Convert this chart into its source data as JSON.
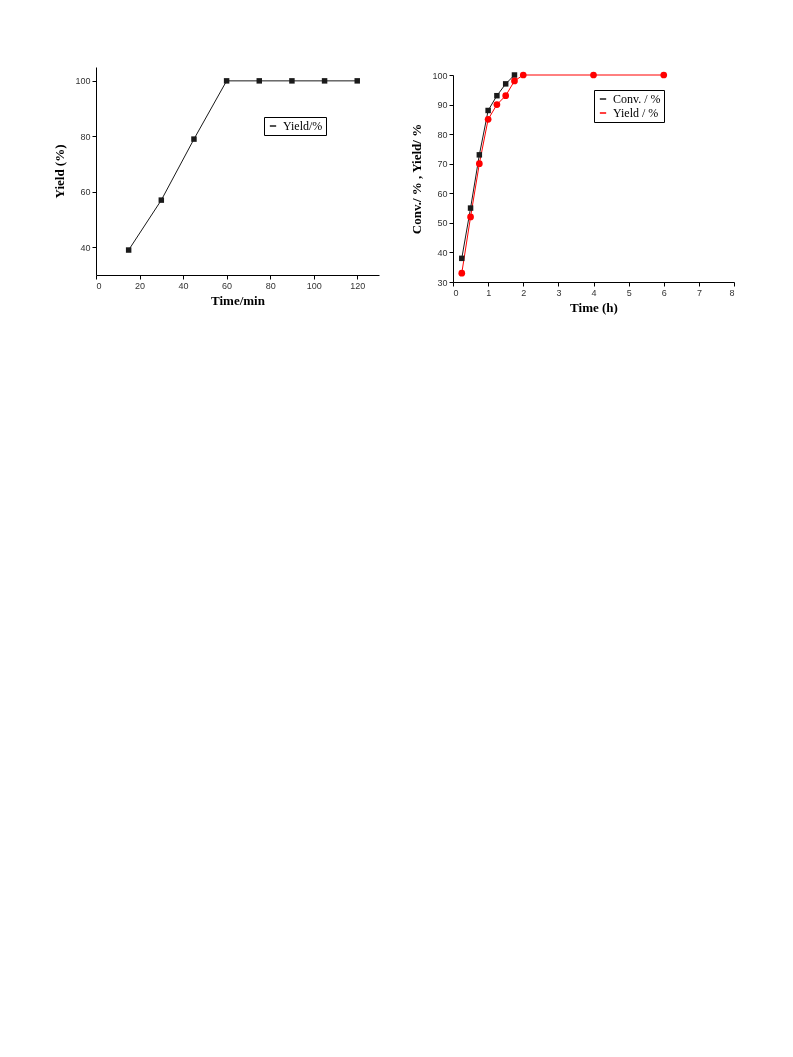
{
  "chart_data": [
    {
      "type": "line",
      "xlabel": "Time/min",
      "ylabel": "Yield (%)",
      "x": [
        15,
        30,
        45,
        60,
        75,
        90,
        105,
        120
      ],
      "xlim": [
        0,
        130
      ],
      "xticks": [
        0,
        20,
        40,
        60,
        80,
        100,
        120
      ],
      "ylim": [
        30,
        105
      ],
      "yticks": [
        40,
        60,
        80,
        100
      ],
      "grid": false,
      "legend": "top right",
      "series": [
        {
          "name": "Yield/%",
          "color": "#1a1a1a",
          "marker": "square",
          "values": [
            39,
            57,
            79,
            100,
            100,
            100,
            100,
            100
          ]
        }
      ]
    },
    {
      "type": "line",
      "xlabel": "Time (h)",
      "ylabel": "Conv./ % , Yield/ %",
      "x": [
        0.25,
        0.5,
        0.75,
        1,
        1.25,
        1.5,
        1.75,
        2,
        4,
        6
      ],
      "xlim": [
        0,
        8
      ],
      "xticks": [
        0,
        1,
        2,
        3,
        4,
        5,
        6,
        7,
        8
      ],
      "ylim": [
        30,
        100
      ],
      "yticks": [
        30,
        40,
        50,
        60,
        70,
        80,
        90,
        100
      ],
      "grid": false,
      "legend": "top right",
      "series": [
        {
          "name": "Conv. / %",
          "color": "#1a1a1a",
          "marker": "square",
          "values": [
            38,
            55,
            73,
            88,
            93,
            97,
            100,
            null,
            null,
            null
          ]
        },
        {
          "name": "Yield / %",
          "color": "#ff0000",
          "marker": "circle",
          "values": [
            33,
            52,
            70,
            85,
            90,
            93,
            98,
            100,
            100,
            100
          ]
        }
      ]
    }
  ]
}
